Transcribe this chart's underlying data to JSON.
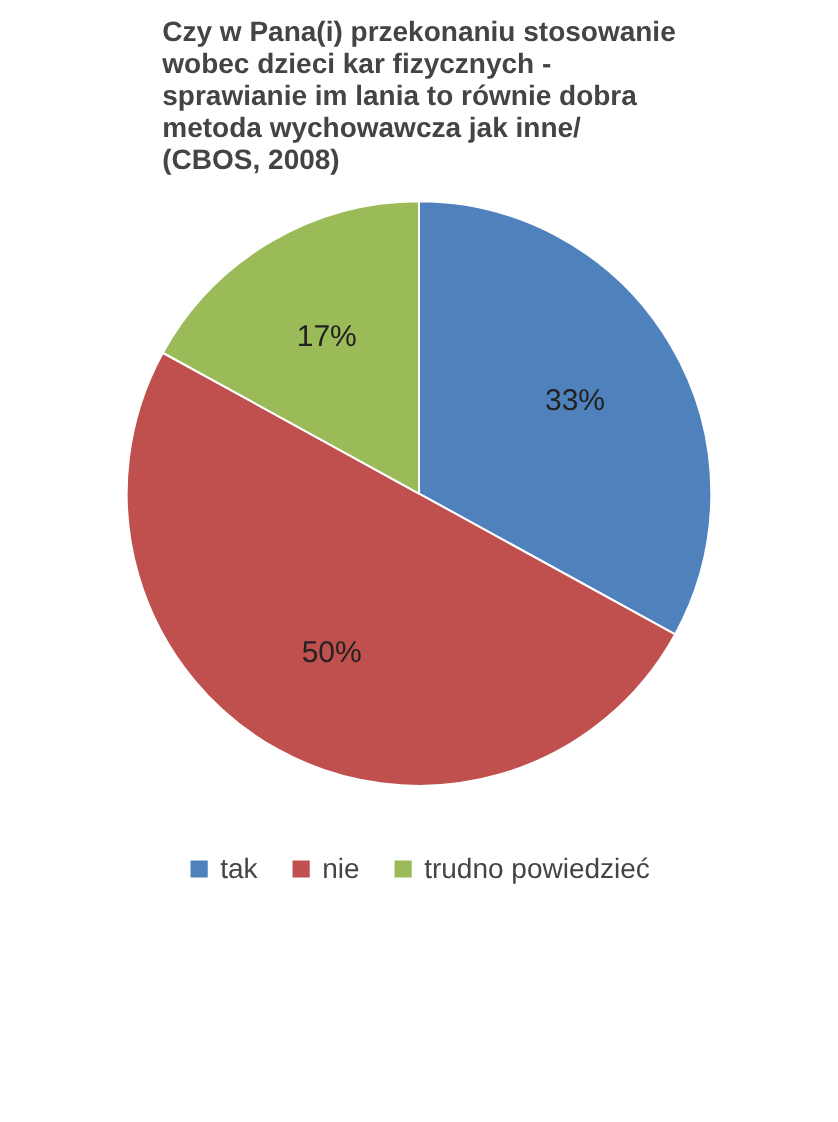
{
  "chart_data": {
    "type": "pie",
    "title": "Czy w Pana(i) przekonaniu stosowanie\nwobec dzieci kar fizycznych -\nsprawianie im lania to równie dobra\nmetoda wychowawcza jak inne/\n(CBOS, 2008)",
    "categories": [
      "tak",
      "nie",
      "trudno powiedzieć"
    ],
    "values": [
      33,
      50,
      17
    ],
    "value_labels": [
      "33%",
      "50%",
      "17%"
    ],
    "colors": [
      "#4f81bd",
      "#c0504d",
      "#9bbb59"
    ],
    "legend": "bottom"
  }
}
